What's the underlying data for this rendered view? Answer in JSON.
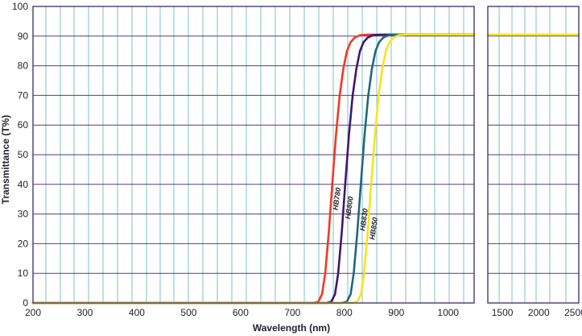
{
  "chart_data": {
    "type": "line",
    "title": "",
    "xlabel": "Wavelength (nm)",
    "ylabel": "Transmittance (T%)",
    "grid": true,
    "ylim": [
      0,
      100
    ],
    "yticks": [
      "0",
      "10",
      "20",
      "30",
      "40",
      "50",
      "60",
      "70",
      "80",
      "90",
      "100"
    ],
    "xlim_main": [
      200,
      1050
    ],
    "xlim_extended": [
      1300,
      2550
    ],
    "x_axis_break": true,
    "xticks_main": [
      "200",
      "300",
      "400",
      "500",
      "600",
      "700",
      "800",
      "900",
      "1000"
    ],
    "xticks_extended": [
      "1500",
      "2000",
      "2500"
    ],
    "series": [
      {
        "name": "HB780",
        "color": "#ef3a24",
        "x": [
          200,
          740,
          750,
          757,
          763,
          770,
          777,
          784,
          791,
          798,
          805,
          812,
          820,
          830,
          845,
          870,
          1050
        ],
        "y": [
          0,
          0,
          0.5,
          3,
          10,
          24,
          41,
          57,
          70,
          79,
          85,
          88,
          89.5,
          90.3,
          90.5,
          90.5,
          90.5
        ]
      },
      {
        "name": "HB800",
        "color": "#3c1873",
        "x": [
          200,
          765,
          775,
          782,
          788,
          795,
          802,
          809,
          816,
          823,
          830,
          837,
          845,
          855,
          870,
          900,
          1050
        ],
        "y": [
          0,
          0,
          0.5,
          3,
          10,
          24,
          41,
          57,
          70,
          79,
          85,
          88,
          89.5,
          90.3,
          90.5,
          90.5,
          90.5
        ]
      },
      {
        "name": "HB830",
        "color": "#1e6a78",
        "x": [
          200,
          795,
          805,
          812,
          818,
          825,
          832,
          839,
          846,
          853,
          860,
          867,
          875,
          885,
          900,
          930,
          1050
        ],
        "y": [
          0,
          0,
          0.5,
          3,
          10,
          24,
          41,
          57,
          70,
          79,
          85,
          88,
          89.5,
          90.3,
          90.5,
          90.5,
          90.5
        ]
      },
      {
        "name": "HB850",
        "color": "#f7e41a",
        "x": [
          200,
          815,
          825,
          832,
          838,
          845,
          852,
          859,
          866,
          873,
          880,
          887,
          895,
          905,
          920,
          950,
          1050,
          1300,
          2550
        ],
        "y": [
          0,
          0,
          0.5,
          3,
          10,
          24,
          41,
          57,
          70,
          79,
          85,
          88,
          89.5,
          90.3,
          90.5,
          90.5,
          90.5,
          90.5,
          90.5
        ]
      }
    ],
    "colors": {
      "grid_vertical": "#7cc0cb",
      "grid_horizontal": "#5a3c7a",
      "frame": "#3a2a66",
      "text": "#23232c"
    }
  }
}
